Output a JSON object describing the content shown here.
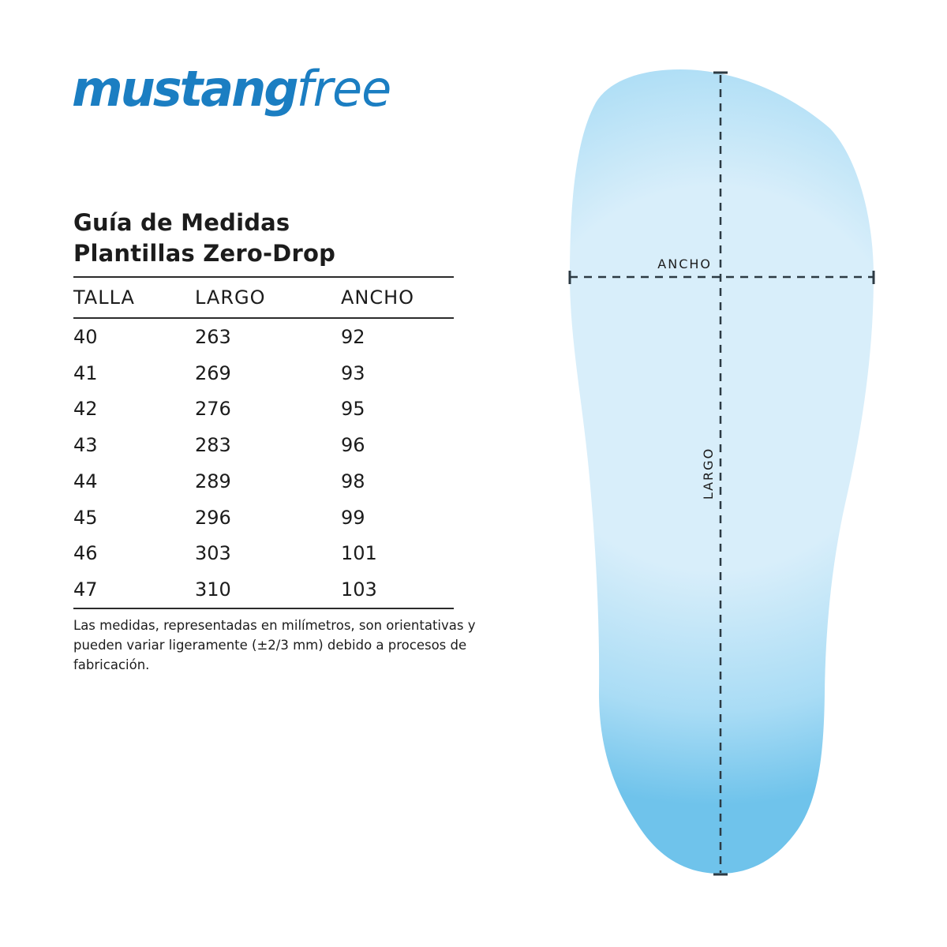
{
  "logo": {
    "brand": "mustang",
    "suffix": "free"
  },
  "title": {
    "line1": "Guía de Medidas",
    "line2": "Plantillas Zero-Drop"
  },
  "table": {
    "headers": [
      "TALLA",
      "LARGO",
      "ANCHO"
    ],
    "rows": [
      [
        "40",
        "263",
        "92"
      ],
      [
        "41",
        "269",
        "93"
      ],
      [
        "42",
        "276",
        "95"
      ],
      [
        "43",
        "283",
        "96"
      ],
      [
        "44",
        "289",
        "98"
      ],
      [
        "45",
        "296",
        "99"
      ],
      [
        "46",
        "303",
        "101"
      ],
      [
        "47",
        "310",
        "103"
      ]
    ]
  },
  "footnote": {
    "line1": "Las medidas, representadas en milímetros, son orientativas y",
    "line2": "pueden variar ligeramente (±2/3 mm) debido a procesos de fabricación."
  },
  "diagram": {
    "width_label": "ANCHO",
    "length_label": "LARGO"
  },
  "colors": {
    "brand_blue": "#1b7ec2",
    "text": "#1c1c1c",
    "rule": "#2b2b2b",
    "line": "#2c3a43",
    "insole_edge": "#6fc3eb",
    "insole_mid": "#a9dcf5",
    "insole_center": "#d8eefa"
  }
}
